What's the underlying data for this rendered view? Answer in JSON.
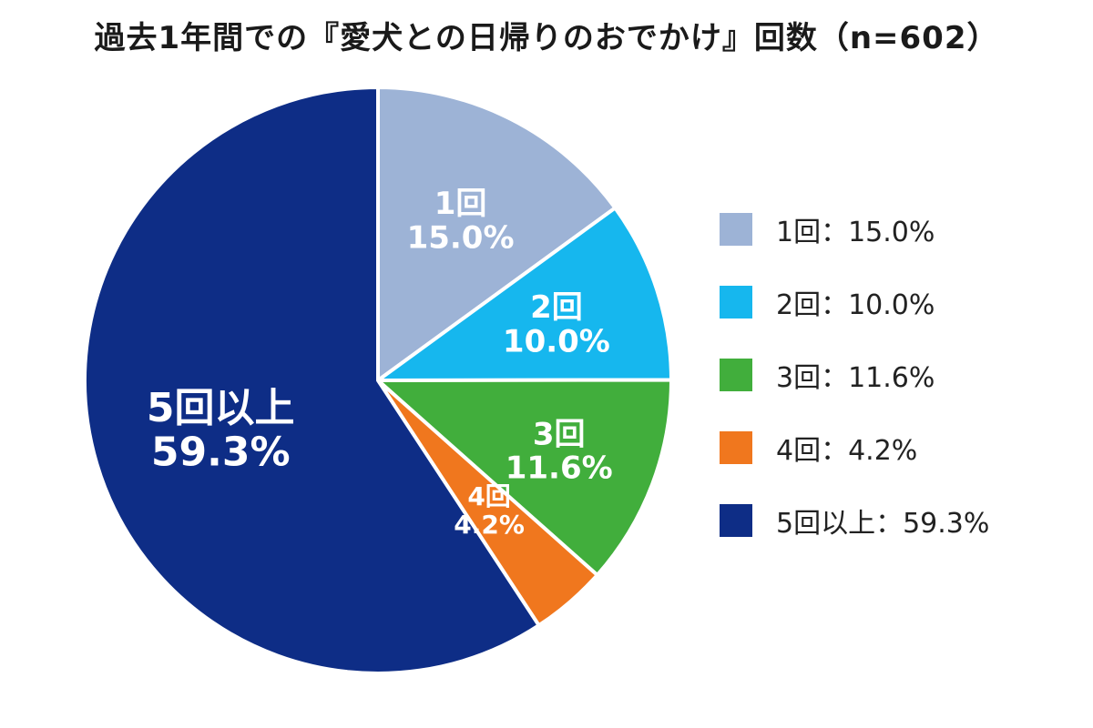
{
  "chart_data": {
    "type": "pie",
    "title": "過去1年間での『愛犬との日帰りのおでかけ』回数（n=602）",
    "slices": [
      {
        "label": "1回",
        "value": 15.0,
        "value_label": "15.0%",
        "legend": "1回：15.0%",
        "color": "#9db3d6"
      },
      {
        "label": "2回",
        "value": 10.0,
        "value_label": "10.0%",
        "legend": "2回：10.0%",
        "color": "#16b7ee"
      },
      {
        "label": "3回",
        "value": 11.6,
        "value_label": "11.6%",
        "legend": "3回：11.6%",
        "color": "#41ae3c"
      },
      {
        "label": "4回",
        "value": 4.2,
        "value_label": "4.2%",
        "legend": "4回：4.2%",
        "color": "#f0771e"
      },
      {
        "label": "5回以上",
        "value": 59.3,
        "value_label": "59.3%",
        "legend": "5回以上：59.3%",
        "color": "#0e2d86"
      }
    ],
    "start_angle": "12 o'clock",
    "direction": "clockwise",
    "legend_position": "right"
  }
}
